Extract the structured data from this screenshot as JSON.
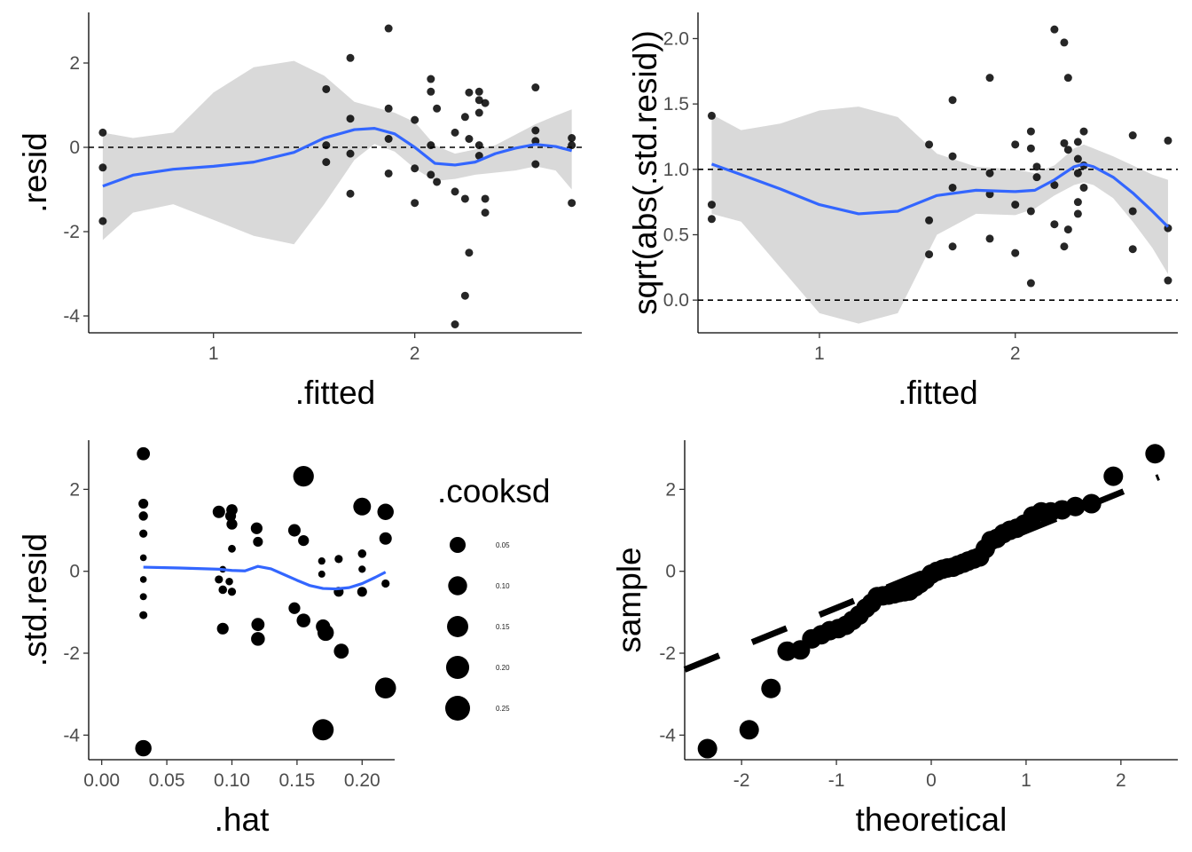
{
  "colors": {
    "points": "#000000",
    "smooth": "#3366FF",
    "band": "#D9D9D9",
    "axis": "#000000",
    "tick_text": "#4d4d4d"
  },
  "chart_data": [
    {
      "id": "resid-vs-fitted",
      "type": "scatter",
      "xlabel": ".fitted",
      "ylabel": ".resid",
      "xlim": [
        0.38,
        2.83
      ],
      "ylim": [
        -4.4,
        3.2
      ],
      "xticks": [
        1,
        2
      ],
      "yticks": [
        -4,
        -2,
        0,
        2
      ],
      "ytick_labels": [
        "-4",
        "-2",
        "0",
        "2"
      ],
      "hlines": [
        0
      ],
      "points": [
        [
          0.45,
          0.35
        ],
        [
          0.45,
          -0.48
        ],
        [
          0.45,
          -1.75
        ],
        [
          1.56,
          1.38
        ],
        [
          1.56,
          -0.35
        ],
        [
          1.56,
          0.05
        ],
        [
          1.68,
          2.12
        ],
        [
          1.68,
          0.68
        ],
        [
          1.68,
          -0.15
        ],
        [
          1.68,
          -1.1
        ],
        [
          1.87,
          2.82
        ],
        [
          1.87,
          0.92
        ],
        [
          1.87,
          0.2
        ],
        [
          1.87,
          -0.62
        ],
        [
          2.0,
          0.65
        ],
        [
          2.0,
          -0.5
        ],
        [
          2.0,
          -1.32
        ],
        [
          2.08,
          1.62
        ],
        [
          2.08,
          1.32
        ],
        [
          2.08,
          0.05
        ],
        [
          2.08,
          -0.65
        ],
        [
          2.11,
          0.92
        ],
        [
          2.11,
          -0.82
        ],
        [
          2.2,
          0.35
        ],
        [
          2.2,
          -1.05
        ],
        [
          2.2,
          -4.2
        ],
        [
          2.25,
          0.72
        ],
        [
          2.25,
          -1.22
        ],
        [
          2.25,
          -3.52
        ],
        [
          2.27,
          1.3
        ],
        [
          2.27,
          0.2
        ],
        [
          2.27,
          -2.5
        ],
        [
          2.32,
          1.32
        ],
        [
          2.32,
          1.12
        ],
        [
          2.32,
          0.82
        ],
        [
          2.32,
          0.05
        ],
        [
          2.32,
          -0.2
        ],
        [
          2.35,
          1.05
        ],
        [
          2.35,
          -1.22
        ],
        [
          2.35,
          -1.55
        ],
        [
          2.6,
          1.42
        ],
        [
          2.6,
          0.4
        ],
        [
          2.6,
          0.15
        ],
        [
          2.6,
          -0.4
        ],
        [
          2.78,
          0.22
        ],
        [
          2.78,
          0.05
        ],
        [
          2.78,
          -1.32
        ]
      ],
      "smooth": {
        "x": [
          0.45,
          0.6,
          0.8,
          1.0,
          1.2,
          1.4,
          1.55,
          1.7,
          1.8,
          1.9,
          2.0,
          2.1,
          2.2,
          2.3,
          2.4,
          2.5,
          2.6,
          2.7,
          2.78
        ],
        "y": [
          -0.92,
          -0.66,
          -0.52,
          -0.45,
          -0.35,
          -0.12,
          0.22,
          0.42,
          0.45,
          0.32,
          0.0,
          -0.38,
          -0.42,
          -0.35,
          -0.15,
          -0.02,
          0.07,
          0.02,
          -0.08
        ],
        "lower": [
          -2.2,
          -1.55,
          -1.35,
          -1.72,
          -2.1,
          -2.3,
          -1.35,
          -0.3,
          0.08,
          -0.1,
          -0.5,
          -0.8,
          -0.75,
          -0.65,
          -0.6,
          -0.55,
          -0.45,
          -0.55,
          -1.0
        ],
        "upper": [
          0.35,
          0.22,
          0.35,
          1.3,
          1.9,
          2.05,
          1.7,
          1.08,
          0.95,
          0.82,
          0.6,
          0.05,
          -0.15,
          -0.05,
          0.05,
          0.3,
          0.55,
          0.75,
          0.9
        ]
      }
    },
    {
      "id": "scale-location",
      "type": "scatter",
      "xlabel": ".fitted",
      "ylabel": "sqrt(abs(.std.resid))",
      "xlim": [
        0.38,
        2.83
      ],
      "ylim": [
        -0.25,
        2.2
      ],
      "xticks": [
        1,
        2
      ],
      "yticks": [
        0.0,
        0.5,
        1.0,
        1.5,
        2.0
      ],
      "ytick_labels": [
        "0.0",
        "0.5",
        "1.0",
        "1.5",
        "2.0"
      ],
      "hlines": [
        0,
        1
      ],
      "points": [
        [
          0.45,
          1.41
        ],
        [
          0.45,
          0.73
        ],
        [
          0.45,
          0.62
        ],
        [
          1.56,
          1.19
        ],
        [
          1.56,
          0.61
        ],
        [
          1.56,
          0.35
        ],
        [
          1.68,
          1.53
        ],
        [
          1.68,
          1.1
        ],
        [
          1.68,
          0.86
        ],
        [
          1.68,
          0.41
        ],
        [
          1.87,
          1.7
        ],
        [
          1.87,
          0.97
        ],
        [
          1.87,
          0.81
        ],
        [
          1.87,
          0.47
        ],
        [
          2.0,
          1.19
        ],
        [
          2.0,
          0.73
        ],
        [
          2.0,
          0.36
        ],
        [
          2.08,
          1.29
        ],
        [
          2.08,
          1.16
        ],
        [
          2.08,
          0.68
        ],
        [
          2.08,
          0.13
        ],
        [
          2.11,
          1.02
        ],
        [
          2.11,
          0.94
        ],
        [
          2.2,
          2.07
        ],
        [
          2.2,
          0.88
        ],
        [
          2.2,
          0.58
        ],
        [
          2.25,
          1.97
        ],
        [
          2.25,
          1.2
        ],
        [
          2.25,
          0.41
        ],
        [
          2.27,
          1.7
        ],
        [
          2.27,
          1.15
        ],
        [
          2.27,
          0.54
        ],
        [
          2.32,
          1.21
        ],
        [
          2.32,
          1.08
        ],
        [
          2.32,
          0.97
        ],
        [
          2.32,
          0.75
        ],
        [
          2.32,
          0.66
        ],
        [
          2.35,
          1.29
        ],
        [
          2.35,
          1.03
        ],
        [
          2.35,
          0.86
        ],
        [
          2.6,
          1.26
        ],
        [
          2.6,
          0.68
        ],
        [
          2.6,
          0.39
        ],
        [
          2.78,
          1.22
        ],
        [
          2.78,
          0.55
        ],
        [
          2.78,
          0.15
        ]
      ],
      "smooth": {
        "x": [
          0.45,
          0.6,
          0.8,
          1.0,
          1.2,
          1.4,
          1.6,
          1.8,
          2.0,
          2.1,
          2.2,
          2.3,
          2.35,
          2.4,
          2.5,
          2.6,
          2.7,
          2.78
        ],
        "y": [
          1.04,
          0.96,
          0.85,
          0.73,
          0.66,
          0.68,
          0.8,
          0.84,
          0.83,
          0.84,
          0.92,
          1.02,
          1.04,
          1.02,
          0.94,
          0.82,
          0.68,
          0.56
        ],
        "lower": [
          0.66,
          0.6,
          0.25,
          -0.1,
          -0.18,
          -0.1,
          0.5,
          0.66,
          0.65,
          0.7,
          0.8,
          0.88,
          0.9,
          0.88,
          0.78,
          0.6,
          0.4,
          0.2
        ],
        "upper": [
          1.42,
          1.3,
          1.35,
          1.45,
          1.48,
          1.4,
          1.12,
          1.02,
          1.0,
          0.97,
          1.03,
          1.16,
          1.19,
          1.16,
          1.1,
          1.03,
          0.96,
          0.92
        ]
      }
    },
    {
      "id": "leverage",
      "type": "scatter",
      "xlabel": ".hat",
      "ylabel": ".std.resid",
      "xlim": [
        -0.01,
        0.225
      ],
      "ylim": [
        -4.6,
        3.2
      ],
      "xticks": [
        0.0,
        0.05,
        0.1,
        0.15,
        0.2
      ],
      "xtick_labels": [
        "0.00",
        "0.05",
        "0.10",
        "0.15",
        "0.20"
      ],
      "yticks": [
        -4,
        -2,
        0,
        2
      ],
      "ytick_labels": [
        "-4",
        "-2",
        "0",
        "2"
      ],
      "legend": {
        "title": ".cooksd",
        "values": [
          0.05,
          0.1,
          0.15,
          0.2,
          0.25
        ],
        "labels": [
          "0.05",
          "0.10",
          "0.15",
          "0.20",
          "0.25"
        ]
      },
      "points": [
        [
          0.032,
          2.87,
          0.06
        ],
        [
          0.032,
          1.65,
          0.02
        ],
        [
          0.032,
          1.35,
          0.015
        ],
        [
          0.032,
          0.92,
          0.008
        ],
        [
          0.032,
          0.33,
          0.002
        ],
        [
          0.032,
          -0.2,
          0.002
        ],
        [
          0.032,
          -0.62,
          0.003
        ],
        [
          0.032,
          -1.07,
          0.007
        ],
        [
          0.032,
          -4.32,
          0.12
        ],
        [
          0.09,
          1.45,
          0.05
        ],
        [
          0.09,
          -0.2,
          0.008
        ],
        [
          0.093,
          0.05,
          0.002
        ],
        [
          0.093,
          -0.45,
          0.01
        ],
        [
          0.093,
          -1.4,
          0.04
        ],
        [
          0.099,
          1.35,
          0.03
        ],
        [
          0.1,
          1.5,
          0.035
        ],
        [
          0.1,
          0.55,
          0.006
        ],
        [
          0.1,
          -0.5,
          0.008
        ],
        [
          0.1,
          1.15,
          0.03
        ],
        [
          0.098,
          -0.25,
          0.005
        ],
        [
          0.119,
          1.05,
          0.04
        ],
        [
          0.12,
          0.72,
          0.02
        ],
        [
          0.12,
          -1.3,
          0.06
        ],
        [
          0.12,
          -1.65,
          0.07
        ],
        [
          0.148,
          1.0,
          0.05
        ],
        [
          0.148,
          -0.9,
          0.04
        ],
        [
          0.155,
          2.32,
          0.23
        ],
        [
          0.155,
          0.75,
          0.03
        ],
        [
          0.155,
          -1.2,
          0.07
        ],
        [
          0.17,
          -1.35,
          0.08
        ],
        [
          0.172,
          -1.5,
          0.12
        ],
        [
          0.169,
          0.25,
          0.004
        ],
        [
          0.169,
          -0.07,
          0.003
        ],
        [
          0.17,
          -3.87,
          0.25
        ],
        [
          0.182,
          0.3,
          0.008
        ],
        [
          0.182,
          -0.5,
          0.02
        ],
        [
          0.184,
          -1.95,
          0.09
        ],
        [
          0.2,
          1.58,
          0.15
        ],
        [
          0.2,
          0.43,
          0.01
        ],
        [
          0.2,
          0.05,
          0.004
        ],
        [
          0.2,
          -0.5,
          0.02
        ],
        [
          0.218,
          1.45,
          0.12
        ],
        [
          0.218,
          0.8,
          0.05
        ],
        [
          0.218,
          -0.3,
          0.008
        ],
        [
          0.218,
          -2.85,
          0.24
        ]
      ],
      "smooth": {
        "x": [
          0.032,
          0.06,
          0.09,
          0.1,
          0.11,
          0.12,
          0.13,
          0.14,
          0.15,
          0.16,
          0.17,
          0.18,
          0.19,
          0.2,
          0.21,
          0.218
        ],
        "y": [
          0.1,
          0.08,
          0.05,
          0.02,
          0.01,
          0.12,
          0.06,
          -0.08,
          -0.22,
          -0.35,
          -0.42,
          -0.43,
          -0.4,
          -0.3,
          -0.15,
          -0.02
        ]
      }
    },
    {
      "id": "qq",
      "type": "scatter",
      "xlabel": "theoretical",
      "ylabel": "sample",
      "xlim": [
        -2.6,
        2.6
      ],
      "ylim": [
        -4.6,
        3.2
      ],
      "xticks": [
        -2,
        -1,
        0,
        1,
        2
      ],
      "xtick_labels": [
        "-2",
        "-1",
        "0",
        "1",
        "2"
      ],
      "yticks": [
        -4,
        -2,
        0,
        2
      ],
      "ytick_labels": [
        "-4",
        "-2",
        "0",
        "2"
      ],
      "qqline": {
        "x": [
          -2.6,
          2.4
        ],
        "y": [
          -2.4,
          2.3
        ]
      },
      "points": [
        [
          -2.36,
          -4.33
        ],
        [
          -1.92,
          -3.87
        ],
        [
          -1.69,
          -2.86
        ],
        [
          -1.52,
          -1.95
        ],
        [
          -1.38,
          -1.92
        ],
        [
          -1.26,
          -1.65
        ],
        [
          -1.16,
          -1.55
        ],
        [
          -1.07,
          -1.45
        ],
        [
          -0.98,
          -1.4
        ],
        [
          -0.9,
          -1.32
        ],
        [
          -0.83,
          -1.2
        ],
        [
          -0.76,
          -1.07
        ],
        [
          -0.69,
          -0.9
        ],
        [
          -0.63,
          -0.78
        ],
        [
          -0.57,
          -0.62
        ],
        [
          -0.51,
          -0.6
        ],
        [
          -0.45,
          -0.58
        ],
        [
          -0.39,
          -0.55
        ],
        [
          -0.34,
          -0.52
        ],
        [
          -0.28,
          -0.5
        ],
        [
          -0.23,
          -0.48
        ],
        [
          -0.17,
          -0.38
        ],
        [
          -0.12,
          -0.3
        ],
        [
          -0.06,
          -0.2
        ],
        [
          0.0,
          -0.07
        ],
        [
          0.06,
          0.0
        ],
        [
          0.12,
          0.05
        ],
        [
          0.17,
          0.08
        ],
        [
          0.23,
          0.1
        ],
        [
          0.28,
          0.15
        ],
        [
          0.34,
          0.2
        ],
        [
          0.39,
          0.25
        ],
        [
          0.45,
          0.3
        ],
        [
          0.51,
          0.35
        ],
        [
          0.57,
          0.55
        ],
        [
          0.63,
          0.75
        ],
        [
          0.69,
          0.8
        ],
        [
          0.76,
          0.92
        ],
        [
          0.83,
          1.0
        ],
        [
          0.9,
          1.05
        ],
        [
          0.98,
          1.15
        ],
        [
          1.07,
          1.35
        ],
        [
          1.16,
          1.45
        ],
        [
          1.26,
          1.45
        ],
        [
          1.38,
          1.5
        ],
        [
          1.52,
          1.58
        ],
        [
          1.69,
          1.65
        ],
        [
          1.92,
          2.32
        ],
        [
          2.36,
          2.87
        ]
      ]
    }
  ]
}
